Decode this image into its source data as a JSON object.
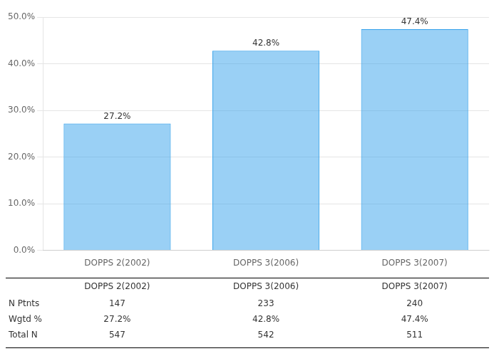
{
  "chart_data": {
    "type": "bar",
    "categories": [
      "DOPPS 2(2002)",
      "DOPPS 3(2006)",
      "DOPPS 3(2007)"
    ],
    "values": [
      27.2,
      42.8,
      47.4
    ],
    "value_labels": [
      "27.2%",
      "42.8%",
      "47.4%"
    ],
    "data_labels": true,
    "ylim": [
      0,
      50
    ],
    "yticks": [
      {
        "value": 0,
        "label": "0.0%"
      },
      {
        "value": 10,
        "label": "10.0%"
      },
      {
        "value": 20,
        "label": "20.0%"
      },
      {
        "value": 30,
        "label": "30.0%"
      },
      {
        "value": 40,
        "label": "40.0%"
      },
      {
        "value": 50,
        "label": "50.0%"
      }
    ],
    "grid": true,
    "table": {
      "rows": [
        {
          "name": "N Ptnts",
          "values": [
            147,
            233,
            240
          ]
        },
        {
          "name": "Wgtd %",
          "values": [
            27.2,
            42.8,
            47.4
          ],
          "value_labels": [
            "27.2%",
            "42.8%",
            "47.4%"
          ]
        },
        {
          "name": "Total N",
          "values": [
            547,
            542,
            511
          ]
        }
      ]
    }
  }
}
